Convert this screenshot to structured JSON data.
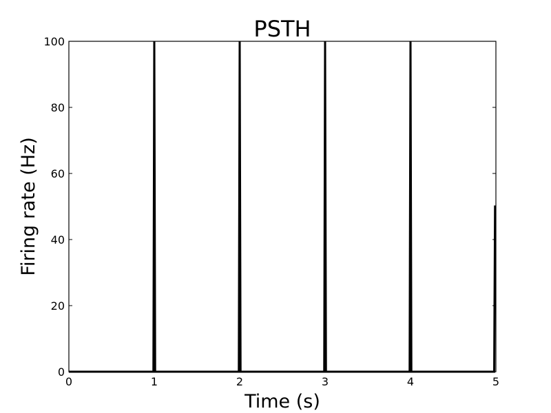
{
  "chart_data": {
    "type": "line",
    "title": "PSTH",
    "xlabel": "Time (s)",
    "ylabel": "Firing rate (Hz)",
    "xlim": [
      0,
      5
    ],
    "ylim": [
      0,
      100
    ],
    "xticks": [
      "0",
      "1",
      "2",
      "3",
      "4",
      "5"
    ],
    "yticks": [
      "0",
      "20",
      "40",
      "60",
      "80",
      "100"
    ],
    "grid": false,
    "line_color": "#000000",
    "series": [
      {
        "x": [
          0,
          0.99,
          1.0,
          1.01,
          1.99,
          2.0,
          2.01,
          2.99,
          3.0,
          3.01,
          3.99,
          4.0,
          4.01,
          4.98,
          4.99,
          5.0
        ],
        "y": [
          0,
          0,
          100,
          0,
          0,
          100,
          0,
          0,
          100,
          0,
          0,
          100,
          0,
          0,
          50,
          50
        ]
      }
    ]
  }
}
